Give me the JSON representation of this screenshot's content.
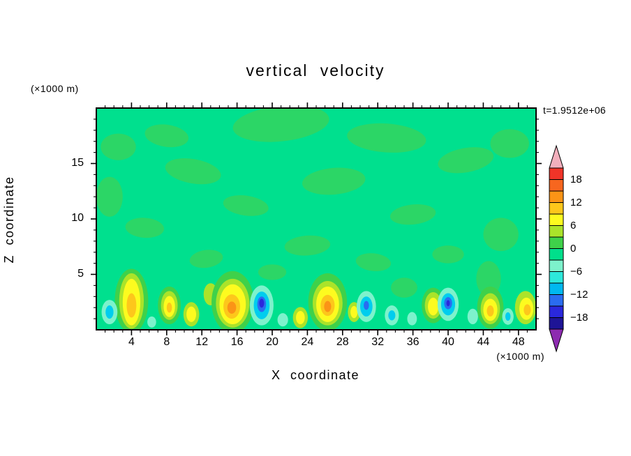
{
  "chart_data": {
    "type": "contour",
    "title": "vertical velocity",
    "time_annotation": "t=1.9512e+06",
    "x": {
      "label": "X coordinate",
      "unit": "(×1000 m)",
      "ticks": [
        4,
        8,
        12,
        16,
        20,
        24,
        28,
        32,
        36,
        40,
        44,
        48
      ],
      "minor_step": 1,
      "lim": [
        0,
        50
      ]
    },
    "z": {
      "label": "Z coordinate",
      "unit": "(×1000 m)",
      "ticks": [
        5,
        10,
        15
      ],
      "minor_step": 1,
      "lim": [
        0,
        20
      ]
    },
    "levels": {
      "min": -21,
      "max": 21,
      "step": 3
    },
    "colorbar": {
      "labels": [
        "18",
        "12",
        "6",
        "0",
        "−6",
        "−12",
        "−18"
      ],
      "label_values": [
        18,
        12,
        6,
        0,
        -6,
        -12,
        -18
      ],
      "arrow_top_color": "#f2afbc",
      "arrow_bottom_color": "#8d2bb0",
      "band_colors": [
        "#f03428",
        "#f7661f",
        "#fb9416",
        "#fdc71b",
        "#fdfb1f",
        "#abe32a",
        "#3fd14a",
        "#00df8b",
        "#7df2cc",
        "#2de8da",
        "#00b8f0",
        "#2a6cf0",
        "#2a28dc",
        "#1e1496"
      ]
    },
    "field": {
      "base_color": "#00e08e",
      "texture_color": "#2cd666",
      "texture_patches": [
        [
          21,
          18.6,
          5.5,
          1.6,
          -6
        ],
        [
          33,
          17.3,
          4.5,
          1.3,
          4
        ],
        [
          8,
          17.5,
          2.5,
          1.0,
          8
        ],
        [
          2.5,
          16.5,
          2.0,
          1.2,
          0
        ],
        [
          11,
          14.3,
          3.2,
          1.1,
          10
        ],
        [
          27,
          13.4,
          3.6,
          1.2,
          -5
        ],
        [
          42,
          15.3,
          3.2,
          1.1,
          -10
        ],
        [
          47,
          16.8,
          2.2,
          1.3,
          0
        ],
        [
          17,
          11.2,
          2.6,
          0.9,
          8
        ],
        [
          36,
          10.4,
          2.6,
          0.9,
          -6
        ],
        [
          5.5,
          9.2,
          2.2,
          0.9,
          4
        ],
        [
          46,
          8.6,
          2.0,
          1.5,
          0
        ],
        [
          24,
          7.6,
          2.6,
          0.9,
          -4
        ],
        [
          31.5,
          6.1,
          2.0,
          0.8,
          6
        ],
        [
          12.5,
          6.4,
          1.9,
          0.8,
          -8
        ],
        [
          40,
          6.8,
          1.8,
          0.8,
          0
        ],
        [
          20,
          5.2,
          1.6,
          0.7,
          0
        ],
        [
          1.5,
          12.0,
          1.5,
          1.8,
          0
        ],
        [
          44.6,
          4.6,
          1.4,
          1.6,
          0
        ],
        [
          35,
          3.8,
          1.5,
          0.9,
          0
        ]
      ],
      "blobs": [
        [
          4,
          2.6,
          1.9,
          2.9,
          "#3fd14a"
        ],
        [
          4,
          2.6,
          1.4,
          2.5,
          "#abe32a"
        ],
        [
          4,
          2.5,
          1.0,
          2.1,
          "#fdfb1f"
        ],
        [
          4,
          2.2,
          0.55,
          1.1,
          "#fdc71b"
        ],
        [
          8.3,
          2.2,
          1.3,
          1.7,
          "#3fd14a"
        ],
        [
          8.3,
          2.2,
          0.95,
          1.3,
          "#abe32a"
        ],
        [
          8.3,
          2.1,
          0.65,
          0.95,
          "#fdfb1f"
        ],
        [
          8.3,
          2.0,
          0.3,
          0.45,
          "#fdc71b"
        ],
        [
          10.8,
          1.4,
          0.9,
          1.1,
          "#abe32a"
        ],
        [
          10.8,
          1.4,
          0.55,
          0.7,
          "#fdfb1f"
        ],
        [
          13.0,
          3.2,
          0.8,
          1.0,
          "#abe32a"
        ],
        [
          15.5,
          2.5,
          2.4,
          2.8,
          "#3fd14a"
        ],
        [
          15.5,
          2.4,
          1.9,
          2.2,
          "#abe32a"
        ],
        [
          15.5,
          2.3,
          1.5,
          1.8,
          "#fdfb1f"
        ],
        [
          15.4,
          2.1,
          0.95,
          1.1,
          "#fdc71b"
        ],
        [
          15.4,
          2.0,
          0.5,
          0.55,
          "#fb9416"
        ],
        [
          18.8,
          2.2,
          1.35,
          1.8,
          "#7df2cc"
        ],
        [
          18.8,
          2.2,
          0.9,
          1.25,
          "#00cdee"
        ],
        [
          18.8,
          2.3,
          0.5,
          0.7,
          "#2a6cf0"
        ],
        [
          18.8,
          2.4,
          0.28,
          0.4,
          "#2a28dc"
        ],
        [
          21.2,
          0.9,
          0.6,
          0.6,
          "#7df2cc"
        ],
        [
          23.2,
          1.1,
          0.85,
          0.95,
          "#abe32a"
        ],
        [
          23.2,
          1.1,
          0.5,
          0.6,
          "#fdfb1f"
        ],
        [
          26.3,
          2.5,
          2.2,
          2.6,
          "#3fd14a"
        ],
        [
          26.3,
          2.4,
          1.7,
          2.0,
          "#abe32a"
        ],
        [
          26.3,
          2.3,
          1.3,
          1.6,
          "#fdfb1f"
        ],
        [
          26.3,
          2.2,
          0.8,
          0.95,
          "#fdc71b"
        ],
        [
          26.3,
          2.1,
          0.4,
          0.5,
          "#fb9416"
        ],
        [
          29.3,
          1.6,
          0.7,
          0.9,
          "#abe32a"
        ],
        [
          29.3,
          1.6,
          0.4,
          0.55,
          "#fdfb1f"
        ],
        [
          30.7,
          2.1,
          1.1,
          1.4,
          "#7df2cc"
        ],
        [
          30.7,
          2.1,
          0.7,
          0.9,
          "#00cdee"
        ],
        [
          30.7,
          2.2,
          0.3,
          0.4,
          "#2a6cf0"
        ],
        [
          33.6,
          1.3,
          0.8,
          0.9,
          "#7df2cc"
        ],
        [
          33.6,
          1.3,
          0.4,
          0.45,
          "#00cdee"
        ],
        [
          35.9,
          1.0,
          0.55,
          0.6,
          "#7df2cc"
        ],
        [
          38.3,
          2.2,
          1.3,
          1.6,
          "#3fd14a"
        ],
        [
          38.3,
          2.2,
          0.95,
          1.2,
          "#abe32a"
        ],
        [
          38.3,
          2.1,
          0.6,
          0.8,
          "#fdfb1f"
        ],
        [
          40.0,
          2.3,
          1.2,
          1.5,
          "#7df2cc"
        ],
        [
          40.0,
          2.3,
          0.8,
          1.0,
          "#00cdee"
        ],
        [
          40.0,
          2.4,
          0.45,
          0.55,
          "#2a6cf0"
        ],
        [
          40.0,
          2.4,
          0.2,
          0.28,
          "#2a28dc"
        ],
        [
          42.8,
          1.2,
          0.6,
          0.7,
          "#7df2cc"
        ],
        [
          44.8,
          2.0,
          1.5,
          1.9,
          "#3fd14a"
        ],
        [
          44.8,
          1.9,
          1.1,
          1.4,
          "#abe32a"
        ],
        [
          44.8,
          1.8,
          0.8,
          1.0,
          "#fdfb1f"
        ],
        [
          44.8,
          1.7,
          0.4,
          0.5,
          "#fdc71b"
        ],
        [
          46.8,
          1.2,
          0.65,
          0.75,
          "#7df2cc"
        ],
        [
          46.8,
          1.2,
          0.3,
          0.38,
          "#00cdee"
        ],
        [
          48.8,
          2.0,
          1.2,
          1.5,
          "#abe32a"
        ],
        [
          48.9,
          1.9,
          0.8,
          1.0,
          "#fdfb1f"
        ],
        [
          49.0,
          1.8,
          0.4,
          0.5,
          "#fdc71b"
        ],
        [
          1.5,
          1.6,
          0.9,
          1.1,
          "#7df2cc"
        ],
        [
          1.5,
          1.6,
          0.45,
          0.6,
          "#00cdee"
        ],
        [
          6.3,
          0.7,
          0.5,
          0.5,
          "#7df2cc"
        ]
      ]
    }
  }
}
